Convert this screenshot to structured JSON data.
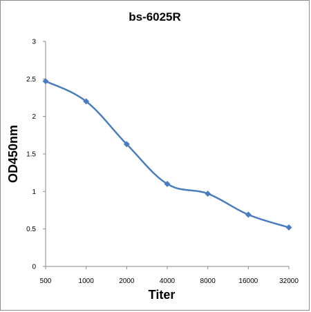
{
  "chart_data": {
    "type": "line",
    "title": "bs-6025R",
    "xlabel": "Titer",
    "ylabel": "OD450nm",
    "categories": [
      "500",
      "1000",
      "2000",
      "4000",
      "8000",
      "16000",
      "32000"
    ],
    "series": [
      {
        "values": [
          2.47,
          2.2,
          1.63,
          1.1,
          0.97,
          0.69,
          0.52
        ]
      }
    ],
    "ylim": [
      0,
      3
    ],
    "yticks": [
      "0",
      "0.5",
      "1",
      "1.5",
      "2",
      "2.5",
      "3"
    ],
    "grid": false,
    "legend": "none",
    "colors": {
      "line": "#4a7dbf",
      "marker": "#4a7dbf",
      "axis": "#8a8a8a"
    }
  }
}
